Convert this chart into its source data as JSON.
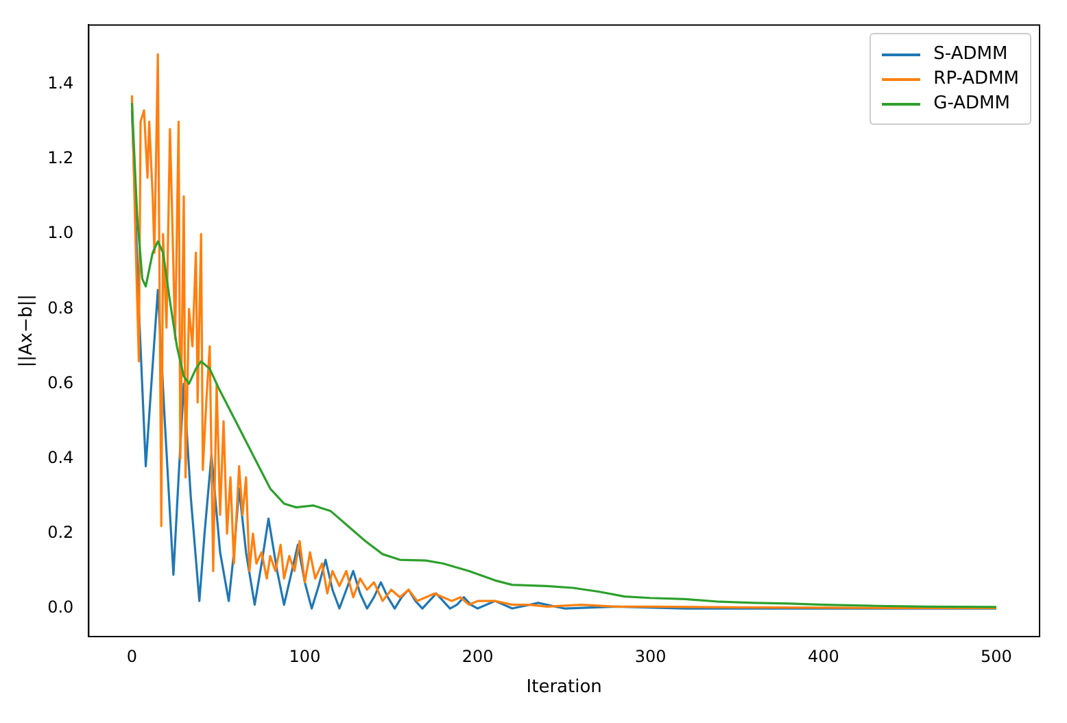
{
  "chart_data": {
    "type": "line",
    "xlabel": "Iteration",
    "ylabel": "||Ax−b||",
    "xlim": [
      -25,
      525
    ],
    "ylim": [
      -0.075,
      1.558
    ],
    "xticks": [
      0,
      100,
      200,
      300,
      400,
      500
    ],
    "yticks": [
      {
        "value": 0,
        "label": "0.0"
      },
      {
        "value": 0.2,
        "label": "0.2"
      },
      {
        "value": 0.4,
        "label": "0.4"
      },
      {
        "value": 0.6,
        "label": "0.6"
      },
      {
        "value": 0.8,
        "label": "0.8"
      },
      {
        "value": 1,
        "label": "1.0"
      },
      {
        "value": 1.2,
        "label": "1.2"
      },
      {
        "value": 1.4,
        "label": "1.4"
      }
    ],
    "grid": false,
    "legend": "top right",
    "marker": "none",
    "line_style": "solid",
    "series": [
      {
        "name": "S-ADMM",
        "color": "#1f77b4",
        "x": [
          0,
          4,
          8,
          12,
          15,
          19,
          24,
          27,
          30,
          34,
          39,
          42,
          46,
          51,
          56,
          59,
          62,
          66,
          71,
          75,
          79,
          84,
          88,
          92,
          96,
          100,
          104,
          108,
          112,
          116,
          120,
          124,
          128,
          132,
          136,
          140,
          144,
          148,
          152,
          156,
          160,
          164,
          168,
          172,
          176,
          180,
          184,
          188,
          192,
          196,
          200,
          210,
          220,
          235,
          250,
          280,
          320,
          400,
          500
        ],
        "values": [
          1.33,
          0.8,
          0.38,
          0.65,
          0.85,
          0.5,
          0.09,
          0.35,
          0.6,
          0.3,
          0.02,
          0.2,
          0.41,
          0.15,
          0.02,
          0.15,
          0.32,
          0.15,
          0.01,
          0.12,
          0.24,
          0.1,
          0.01,
          0.09,
          0.17,
          0.07,
          0.0,
          0.06,
          0.13,
          0.05,
          0.0,
          0.05,
          0.1,
          0.04,
          0.0,
          0.03,
          0.07,
          0.03,
          0.0,
          0.03,
          0.05,
          0.02,
          0.0,
          0.02,
          0.04,
          0.02,
          0.0,
          0.01,
          0.03,
          0.01,
          0.0,
          0.02,
          0.0,
          0.015,
          0.0,
          0.005,
          0.0,
          0.0,
          0.0
        ]
      },
      {
        "name": "RP-ADMM",
        "color": "#ff7f0e",
        "x": [
          0,
          2,
          4,
          5,
          7,
          9,
          10,
          12,
          13,
          15,
          17,
          18,
          20,
          22,
          23,
          25,
          27,
          28,
          30,
          31,
          33,
          35,
          37,
          38,
          40,
          41,
          43,
          45,
          47,
          49,
          51,
          53,
          55,
          57,
          59,
          62,
          64,
          66,
          68,
          70,
          72,
          75,
          78,
          80,
          83,
          86,
          88,
          91,
          94,
          97,
          100,
          103,
          106,
          110,
          113,
          116,
          120,
          124,
          128,
          132,
          136,
          140,
          145,
          150,
          155,
          160,
          165,
          170,
          175,
          180,
          185,
          190,
          195,
          200,
          210,
          220,
          230,
          240,
          260,
          280,
          300,
          350,
          400,
          450,
          500
        ],
        "values": [
          1.37,
          1.0,
          0.66,
          1.3,
          1.33,
          1.15,
          1.3,
          1.1,
          0.95,
          1.48,
          0.22,
          1.0,
          0.75,
          1.28,
          1.1,
          0.72,
          1.3,
          0.4,
          1.1,
          0.35,
          0.8,
          0.7,
          0.95,
          0.55,
          1.0,
          0.37,
          0.55,
          0.7,
          0.1,
          0.6,
          0.25,
          0.5,
          0.2,
          0.35,
          0.12,
          0.38,
          0.25,
          0.35,
          0.1,
          0.2,
          0.12,
          0.15,
          0.08,
          0.14,
          0.1,
          0.17,
          0.08,
          0.14,
          0.1,
          0.18,
          0.07,
          0.15,
          0.08,
          0.12,
          0.04,
          0.1,
          0.06,
          0.1,
          0.03,
          0.08,
          0.05,
          0.07,
          0.02,
          0.05,
          0.03,
          0.05,
          0.02,
          0.03,
          0.04,
          0.03,
          0.02,
          0.03,
          0.01,
          0.02,
          0.02,
          0.01,
          0.01,
          0.005,
          0.01,
          0.005,
          0.005,
          0.003,
          0.002,
          0.001,
          0.001
        ]
      },
      {
        "name": "G-ADMM",
        "color": "#2ca02c",
        "x": [
          0,
          3,
          6,
          8,
          12,
          15,
          18,
          22,
          26,
          30,
          33,
          37,
          40,
          45,
          50,
          60,
          70,
          80,
          88,
          95,
          105,
          115,
          125,
          135,
          145,
          155,
          170,
          180,
          195,
          210,
          220,
          240,
          255,
          270,
          285,
          300,
          320,
          340,
          360,
          380,
          400,
          430,
          460,
          500
        ],
        "values": [
          1.35,
          1.05,
          0.88,
          0.86,
          0.95,
          0.98,
          0.95,
          0.82,
          0.7,
          0.62,
          0.6,
          0.64,
          0.66,
          0.64,
          0.59,
          0.5,
          0.41,
          0.32,
          0.28,
          0.27,
          0.275,
          0.26,
          0.22,
          0.18,
          0.145,
          0.13,
          0.128,
          0.12,
          0.1,
          0.075,
          0.063,
          0.06,
          0.055,
          0.045,
          0.032,
          0.028,
          0.025,
          0.018,
          0.015,
          0.013,
          0.01,
          0.007,
          0.005,
          0.004
        ]
      }
    ]
  }
}
